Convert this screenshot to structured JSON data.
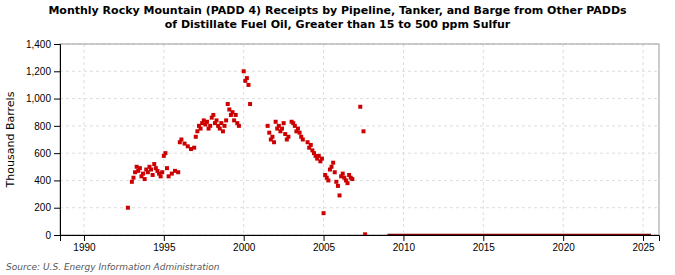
{
  "chart_data": {
    "type": "scatter",
    "title": "Monthly Rocky Mountain (PADD 4) Receipts by Pipeline, Tanker, and Barge from Other PADDs\nof Distillate Fuel Oil, Greater than 15 to 500 ppm Sulfur",
    "ylabel": "Thousand Barrels",
    "annotations": [
      "Source: U.S. Energy Information Administration"
    ],
    "xlim": [
      1988.5,
      2026
    ],
    "ylim": [
      0,
      1400
    ],
    "xticks": [
      1990,
      1995,
      2000,
      2005,
      2010,
      2015,
      2020,
      2025
    ],
    "yticks": [
      0,
      200,
      400,
      600,
      800,
      {
        "value": 1000,
        "label": "1,000"
      },
      {
        "value": 1200,
        "label": "1,200"
      },
      {
        "value": 1400,
        "label": "1,400"
      }
    ],
    "grid": true,
    "series": [
      {
        "type": "scatter",
        "color": "#cc0000",
        "marker": "square",
        "x": [
          1992.75,
          1993.0,
          1993.1,
          1993.2,
          1993.3,
          1993.4,
          1993.5,
          1993.6,
          1993.7,
          1993.8,
          1993.9,
          1994.0,
          1994.1,
          1994.2,
          1994.3,
          1994.4,
          1994.5,
          1994.6,
          1994.7,
          1994.8,
          1994.9,
          1995.0,
          1995.1,
          1995.2,
          1995.3,
          1995.5,
          1995.7,
          1995.9,
          1996.0,
          1996.1,
          1996.3,
          1996.5,
          1996.7,
          1996.9,
          1997.0,
          1997.1,
          1997.2,
          1997.3,
          1997.4,
          1997.5,
          1997.6,
          1997.7,
          1997.8,
          1997.9,
          1998.0,
          1998.1,
          1998.2,
          1998.3,
          1998.4,
          1998.5,
          1998.6,
          1998.7,
          1998.8,
          1998.9,
          1999.0,
          1999.1,
          1999.2,
          1999.3,
          1999.4,
          1999.5,
          1999.6,
          1999.7,
          2000.0,
          2000.1,
          2000.2,
          2000.3,
          2000.4,
          2001.5,
          2001.6,
          2001.7,
          2001.8,
          2001.9,
          2002.0,
          2002.1,
          2002.2,
          2002.3,
          2002.4,
          2002.5,
          2002.6,
          2002.7,
          2002.8,
          2003.0,
          2003.1,
          2003.2,
          2003.3,
          2003.4,
          2003.5,
          2003.6,
          2003.7,
          2004.0,
          2004.1,
          2004.2,
          2004.3,
          2004.4,
          2004.5,
          2004.6,
          2004.7,
          2004.8,
          2004.9,
          2005.0,
          2005.1,
          2005.2,
          2005.3,
          2005.4,
          2005.5,
          2005.6,
          2005.7,
          2005.8,
          2005.9,
          2006.0,
          2006.1,
          2006.2,
          2006.3,
          2006.4,
          2006.5,
          2006.6,
          2006.7,
          2006.8,
          2007.3,
          2007.5,
          2007.6
        ],
        "values": [
          200,
          390,
          420,
          460,
          500,
          470,
          490,
          430,
          450,
          410,
          480,
          460,
          500,
          480,
          440,
          520,
          490,
          470,
          450,
          430,
          460,
          580,
          600,
          490,
          430,
          450,
          470,
          460,
          680,
          700,
          670,
          650,
          630,
          640,
          720,
          760,
          800,
          780,
          820,
          840,
          810,
          830,
          780,
          800,
          860,
          880,
          820,
          840,
          800,
          780,
          820,
          760,
          800,
          840,
          960,
          920,
          880,
          900,
          840,
          880,
          820,
          800,
          1200,
          1130,
          1150,
          1100,
          960,
          800,
          750,
          700,
          720,
          680,
          830,
          780,
          800,
          760,
          780,
          820,
          740,
          700,
          720,
          830,
          820,
          800,
          760,
          780,
          750,
          720,
          700,
          680,
          640,
          660,
          620,
          600,
          580,
          560,
          580,
          540,
          560,
          160,
          440,
          420,
          400,
          480,
          500,
          530,
          460,
          390,
          360,
          290,
          430,
          450,
          420,
          400,
          380,
          440,
          420,
          410,
          940,
          760,
          5
        ]
      },
      {
        "type": "line",
        "color": "#7a0000",
        "line_style": "solid",
        "x": [
          2009.0,
          2025.5
        ],
        "values": [
          0,
          0
        ]
      }
    ]
  }
}
